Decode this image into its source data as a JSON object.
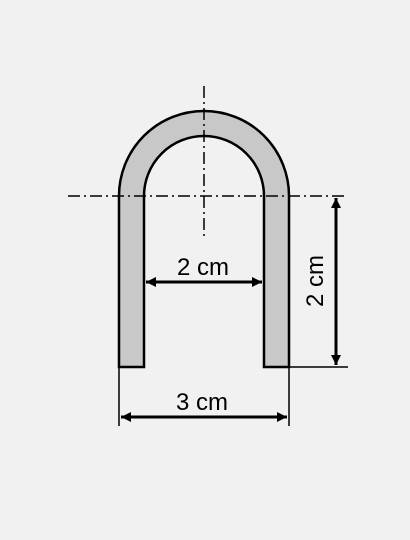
{
  "colors": {
    "background": "#f1f1f1",
    "tube_fill": "#c8c8c8",
    "line": "#000000"
  },
  "dimensions": {
    "inner_width": "2 cm",
    "outer_width": "3 cm",
    "leg_height": "2 cm"
  }
}
